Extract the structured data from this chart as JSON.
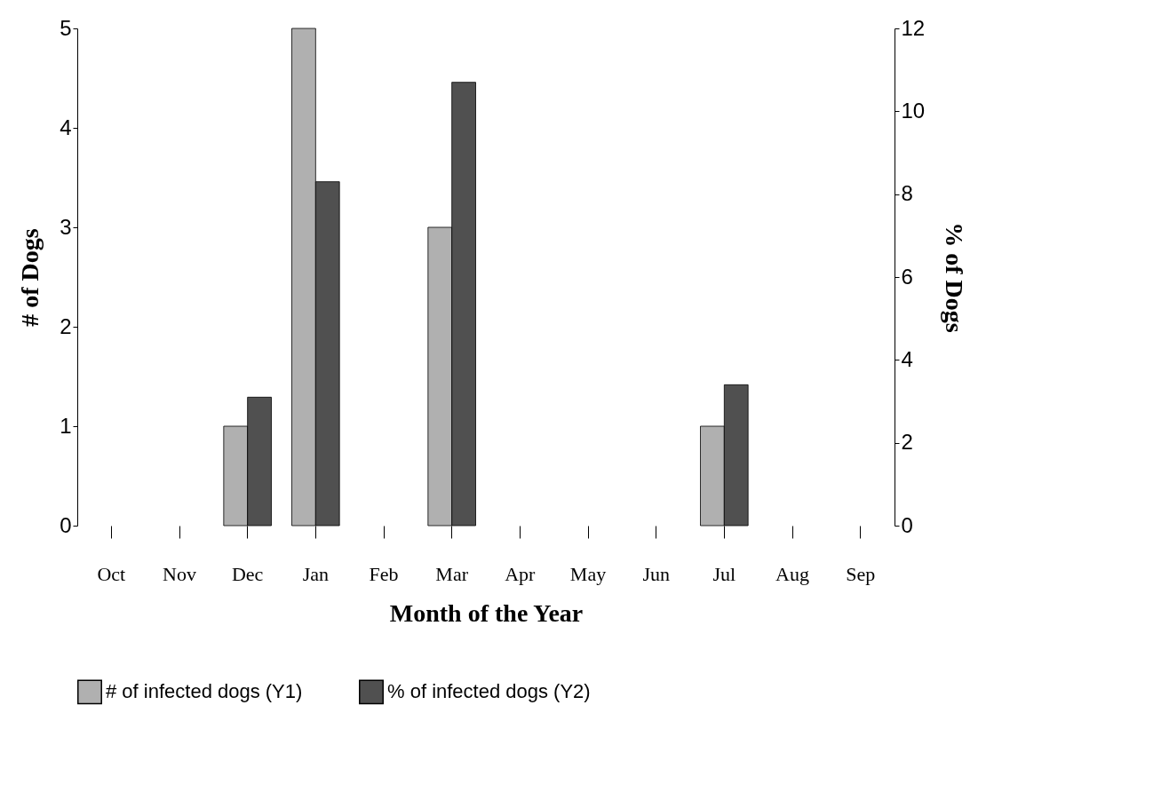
{
  "chart_data": {
    "type": "bar",
    "xlabel": "Month of the Year",
    "ylabel": "# of Dogs",
    "y2label": "% of Dogs",
    "categories": [
      "Oct",
      "Nov",
      "Dec",
      "Jan",
      "Feb",
      "Mar",
      "Apr",
      "May",
      "Jun",
      "Jul",
      "Aug",
      "Sep"
    ],
    "series": [
      {
        "name": "# of infected dogs (Y1)",
        "color": "#b0b0b0",
        "values": [
          0,
          0,
          1,
          5,
          0,
          3,
          0,
          0,
          0,
          1,
          0,
          0
        ]
      },
      {
        "name": "% of infected dogs (Y2)",
        "color": "#505050",
        "axis": "y2",
        "values": [
          0,
          0,
          3.1,
          8.3,
          0,
          10.7,
          0,
          0,
          0,
          3.4,
          0,
          0
        ]
      }
    ],
    "ylim": [
      0,
      5
    ],
    "yticks": [
      0,
      1,
      2,
      3,
      4,
      5
    ],
    "y2lim": [
      0,
      12
    ],
    "y2ticks": [
      0,
      2,
      4,
      6,
      8,
      10,
      12
    ],
    "legend": "bottom",
    "grid": false
  }
}
